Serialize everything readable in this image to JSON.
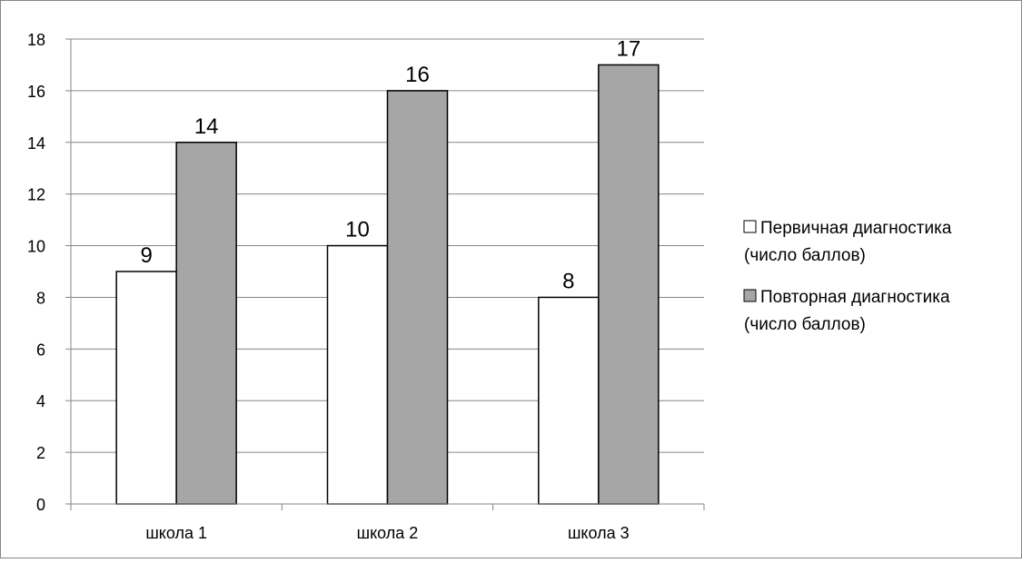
{
  "chart_data": {
    "type": "bar",
    "categories": [
      "школа 1",
      "школа 2",
      "школа 3"
    ],
    "series": [
      {
        "name": "Первичная диагностика (число баллов)",
        "legend_lines": [
          "Первичная диагностика",
          "(число баллов)"
        ],
        "values": [
          9,
          10,
          8
        ],
        "color": "#ffffff"
      },
      {
        "name": "Повторная диагностика (число баллов)",
        "legend_lines": [
          "Повторная диагностика",
          "(число баллов)"
        ],
        "values": [
          14,
          16,
          17
        ],
        "color": "#a6a6a6"
      }
    ],
    "ylim": [
      0,
      18
    ],
    "yticks": [
      0,
      2,
      4,
      6,
      8,
      10,
      12,
      14,
      16,
      18
    ],
    "grid": true,
    "legend_position": "right",
    "data_labels": true,
    "title": "",
    "xlabel": "",
    "ylabel": ""
  }
}
